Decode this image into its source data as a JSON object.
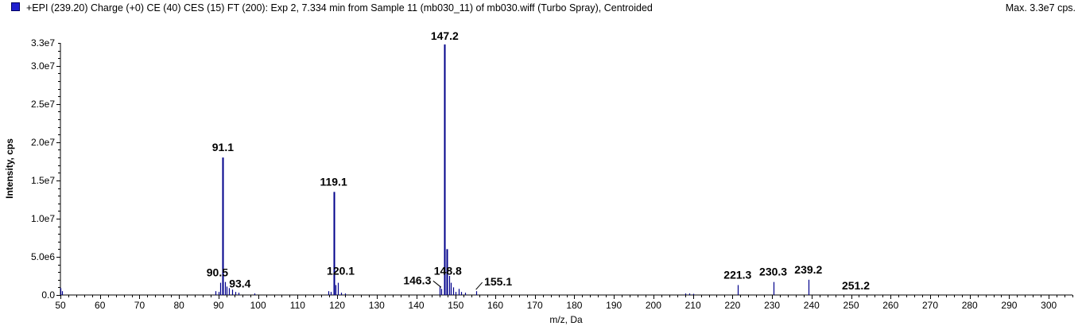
{
  "header": {
    "title": "+EPI (239.20) Charge (+0) CE (40) CES (15) FT (200): Exp 2, 7.334 min from Sample 11 (mb030_11) of mb030.wiff (Turbo Spray), Centroided",
    "max_label": "Max. 3.3e7 cps."
  },
  "chart_data": {
    "type": "bar",
    "xlabel": "m/z, Da",
    "ylabel": "Intensity, cps",
    "xlim": [
      50,
      306
    ],
    "ylim": [
      0,
      33000000
    ],
    "x_ticks": [
      50,
      60,
      70,
      80,
      90,
      100,
      110,
      120,
      130,
      140,
      150,
      160,
      170,
      180,
      190,
      200,
      210,
      220,
      230,
      240,
      250,
      260,
      270,
      280,
      290,
      300
    ],
    "y_ticks": [
      {
        "value": 0,
        "label": "0.0"
      },
      {
        "value": 5000000,
        "label": "5.0e6"
      },
      {
        "value": 10000000,
        "label": "1.0e7"
      },
      {
        "value": 15000000,
        "label": "1.5e7"
      },
      {
        "value": 20000000,
        "label": "2.0e7"
      },
      {
        "value": 25000000,
        "label": "2.5e7"
      },
      {
        "value": 30000000,
        "label": "3.0e7"
      },
      {
        "value": 33000000,
        "label": "3.3e7"
      }
    ],
    "peaks": [
      [
        50.0,
        900000
      ],
      [
        50.4,
        500000
      ],
      [
        89.2,
        500000
      ],
      [
        90.0,
        400000
      ],
      [
        90.5,
        1600000
      ],
      [
        91.1,
        18000000
      ],
      [
        91.6,
        1700000
      ],
      [
        92.1,
        1100000
      ],
      [
        92.6,
        900000
      ],
      [
        93.4,
        700000
      ],
      [
        94.2,
        400000
      ],
      [
        95.0,
        300000
      ],
      [
        99.0,
        200000
      ],
      [
        117.8,
        500000
      ],
      [
        118.4,
        400000
      ],
      [
        119.1,
        13500000
      ],
      [
        119.6,
        1300000
      ],
      [
        120.1,
        1600000
      ],
      [
        121.0,
        300000
      ],
      [
        122.0,
        200000
      ],
      [
        145.9,
        1100000
      ],
      [
        146.3,
        800000
      ],
      [
        147.2,
        32800000
      ],
      [
        147.8,
        6000000
      ],
      [
        148.3,
        2500000
      ],
      [
        148.8,
        1600000
      ],
      [
        149.3,
        1000000
      ],
      [
        150.0,
        400000
      ],
      [
        150.8,
        800000
      ],
      [
        151.4,
        400000
      ],
      [
        152.3,
        300000
      ],
      [
        155.1,
        500000
      ],
      [
        208.0,
        200000
      ],
      [
        209.0,
        200000
      ],
      [
        210.0,
        150000
      ],
      [
        221.3,
        1300000
      ],
      [
        230.3,
        1700000
      ],
      [
        239.2,
        2000000
      ]
    ],
    "peak_labels": [
      {
        "text": "91.1",
        "x": 91.1,
        "y": 18000000
      },
      {
        "text": "119.1",
        "x": 119.1,
        "y": 13500000
      },
      {
        "text": "147.2",
        "x": 147.2,
        "y": 32800000
      },
      {
        "text": "90.5",
        "x": 90.5,
        "y": 1600000
      },
      {
        "text": "93.4",
        "x": 93.4,
        "y": 700000
      },
      {
        "text": "120.1",
        "x": 120.1,
        "y": 1600000
      },
      {
        "text": "146.3",
        "x": 146.3,
        "y": 800000
      },
      {
        "text": "148.8",
        "x": 148.8,
        "y": 1600000
      },
      {
        "text": "155.1",
        "x": 155.1,
        "y": 500000
      },
      {
        "text": "221.3",
        "x": 221.3,
        "y": 1300000
      },
      {
        "text": "230.3",
        "x": 230.3,
        "y": 1700000
      },
      {
        "text": "239.2",
        "x": 239.2,
        "y": 2000000
      },
      {
        "text": "251.2",
        "x": 251.2,
        "y": 0
      }
    ],
    "colors": {
      "series": "#00008b",
      "legend_swatch": "#1f1fcf",
      "axis": "#000000"
    },
    "grid": false
  }
}
